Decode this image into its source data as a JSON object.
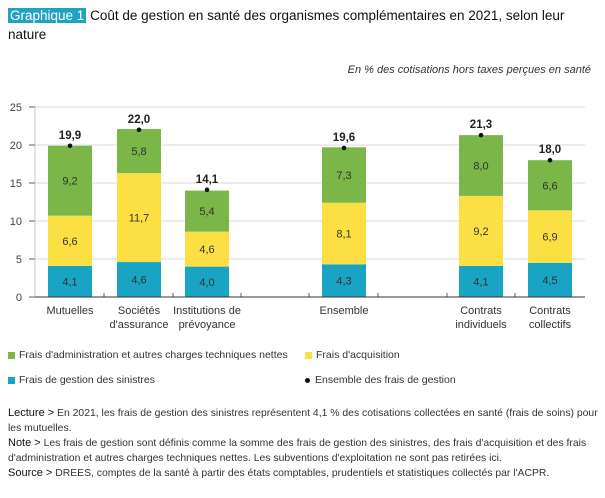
{
  "header": {
    "tag": "Graphique 1",
    "title": "Coût de gestion en santé des organismes complémentaires en 2021, selon leur nature",
    "unit": "En % des cotisations hors taxes perçues en santé"
  },
  "colors": {
    "admin": "#7ab648",
    "acquisition": "#fce043",
    "sinistres": "#1aa4c4",
    "total_marker": "#111111",
    "grid": "#d9d9d9",
    "axis": "#333333"
  },
  "chart_data": {
    "type": "bar",
    "stacked": true,
    "title": "Coût de gestion en santé des organismes complémentaires en 2021, selon leur nature",
    "ylabel": "En % des cotisations hors taxes perçues en santé",
    "xlabel": "",
    "ylim": [
      0,
      25
    ],
    "yticks": [
      "0",
      "5",
      "10",
      "15",
      "20",
      "25"
    ],
    "grid": true,
    "categories": [
      [
        "Mutuelles"
      ],
      [
        "Sociétés",
        "d'assurance"
      ],
      [
        "Institutions de",
        "prévoyance"
      ],
      [
        "Ensemble"
      ],
      [
        "Contrats",
        "individuels"
      ],
      [
        "Contrats",
        "collectifs"
      ]
    ],
    "series": [
      {
        "name": "Frais de gestion des sinistres",
        "key": "sinistres",
        "values": [
          4.1,
          4.6,
          4.0,
          4.3,
          4.1,
          4.5
        ],
        "labels": [
          "4,1",
          "4,6",
          "4,0",
          "4,3",
          "4,1",
          "4,5"
        ]
      },
      {
        "name": "Frais d'acquisition",
        "key": "acquisition",
        "values": [
          6.6,
          11.7,
          4.6,
          8.1,
          9.2,
          6.9
        ],
        "labels": [
          "6,6",
          "11,7",
          "4,6",
          "8,1",
          "9,2",
          "6,9"
        ]
      },
      {
        "name": "Frais d'administration et autres charges techniques nettes",
        "key": "admin",
        "values": [
          9.2,
          5.8,
          5.4,
          7.3,
          8.0,
          6.6
        ],
        "labels": [
          "9,2",
          "5,8",
          "5,4",
          "7,3",
          "8,0",
          "6,6"
        ]
      }
    ],
    "totals": {
      "name": "Ensemble des frais de gestion",
      "values": [
        19.9,
        22.0,
        14.1,
        19.6,
        21.3,
        18.0
      ],
      "labels": [
        "19,9",
        "22,0",
        "14,1",
        "19,6",
        "21,3",
        "18,0"
      ]
    },
    "legend_position": "bottom"
  },
  "legend": {
    "admin": "Frais d'administration et autres charges techniques nettes",
    "acquisition": "Frais d'acquisition",
    "sinistres": "Frais de gestion des sinistres",
    "total": "Ensemble des frais de gestion"
  },
  "notes": {
    "lecture_label": "Lecture >",
    "lecture": " En 2021, les frais de gestion des sinistres représentent 4,1 % des cotisations collectées en santé (frais de soins) pour les mutuelles.",
    "note_label": "Note >",
    "note": " Les frais de gestion sont définis comme la somme des frais de gestion des sinistres, des frais d'acquisition et des frais d'administration et autres charges techniques nettes. Les subventions d'exploitation ne sont pas retirées ici.",
    "source_label": "Source >",
    "source": " DREES, comptes de la santé à partir des états comptables, prudentiels et statistiques collectés par l'ACPR."
  }
}
